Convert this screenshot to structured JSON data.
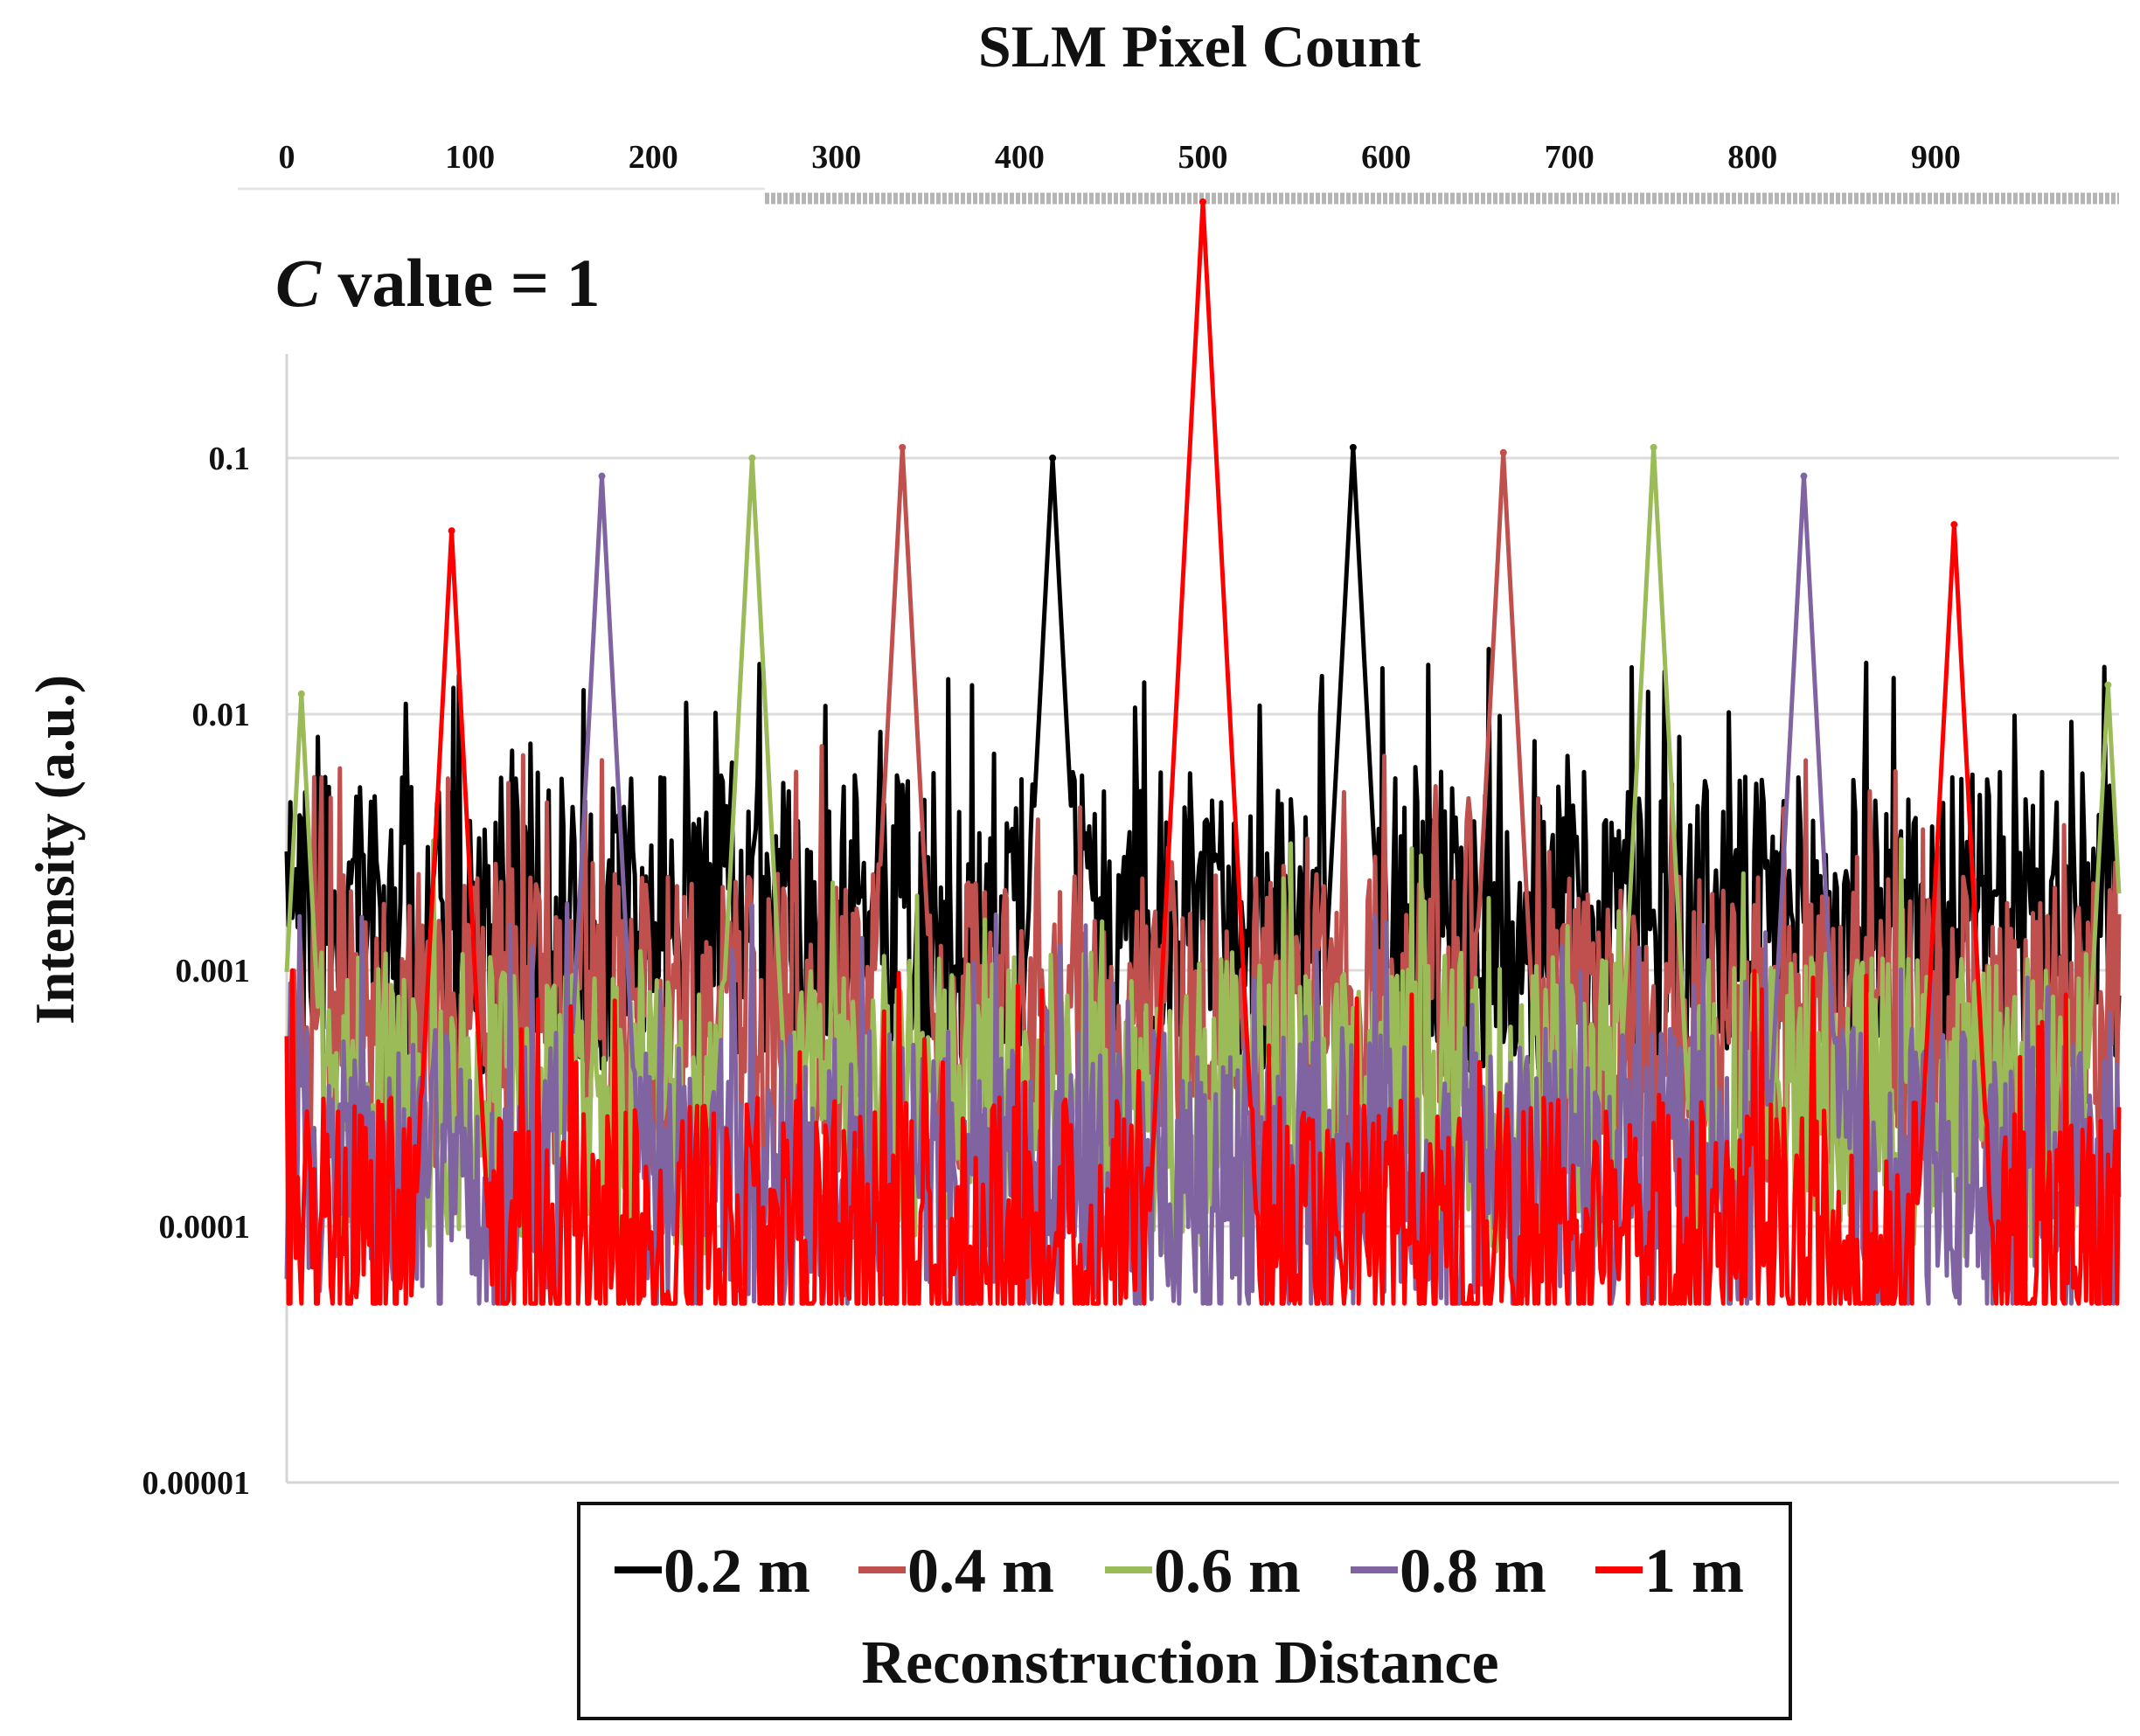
{
  "chart_data": {
    "type": "line",
    "title": "SLM Pixel Count",
    "annotation": {
      "italic": "C",
      "rest": " value = 1"
    },
    "xlabel": "SLM Pixel Count",
    "ylabel": "Intensity (a.u.)",
    "yscale": "log",
    "xlim": [
      0,
      1000
    ],
    "ylim": [
      1e-05,
      1
    ],
    "xticks": [
      0,
      100,
      200,
      300,
      400,
      500,
      600,
      700,
      800,
      900
    ],
    "x_tick_labels": [
      "0",
      "100",
      "200",
      "300",
      "400",
      "500",
      "600",
      "700",
      "800",
      "900"
    ],
    "yticks": [
      0.1,
      0.01,
      0.001,
      0.0001,
      1e-05
    ],
    "y_tick_labels": [
      "0.1",
      "0.01",
      "0.001",
      "0.0001",
      "0.00001"
    ],
    "noise_floor": 5e-05,
    "legend": {
      "title": "Reconstruction Distance",
      "position": "bottom-center",
      "entries": [
        "0.2 m",
        "0.4 m",
        "0.6 m",
        "0.8 m",
        "1 m"
      ]
    },
    "series": [
      {
        "name": "0.2 m",
        "color": "#000000",
        "noise_median": 0.0015,
        "peaks": [
          {
            "x": 418,
            "y": 0.1
          },
          {
            "x": 582,
            "y": 0.11
          }
        ]
      },
      {
        "name": "0.4 m",
        "color": "#c0504d",
        "noise_median": 0.0006,
        "peaks": [
          {
            "x": 336,
            "y": 0.11
          },
          {
            "x": 664,
            "y": 0.105
          }
        ]
      },
      {
        "name": "0.6 m",
        "color": "#9bbb59",
        "noise_median": 0.0003,
        "peaks": [
          {
            "x": 8,
            "y": 0.012
          },
          {
            "x": 254,
            "y": 0.1
          },
          {
            "x": 746,
            "y": 0.11
          },
          {
            "x": 994,
            "y": 0.013
          }
        ]
      },
      {
        "name": "0.8 m",
        "color": "#8064a2",
        "noise_median": 0.00015,
        "peaks": [
          {
            "x": 172,
            "y": 0.085
          },
          {
            "x": 828,
            "y": 0.085
          }
        ]
      },
      {
        "name": "1 m",
        "color": "#ff0000",
        "noise_median": 8e-05,
        "peaks": [
          {
            "x": 90,
            "y": 0.052
          },
          {
            "x": 500,
            "y": 1.0
          },
          {
            "x": 910,
            "y": 0.055
          }
        ]
      }
    ]
  }
}
